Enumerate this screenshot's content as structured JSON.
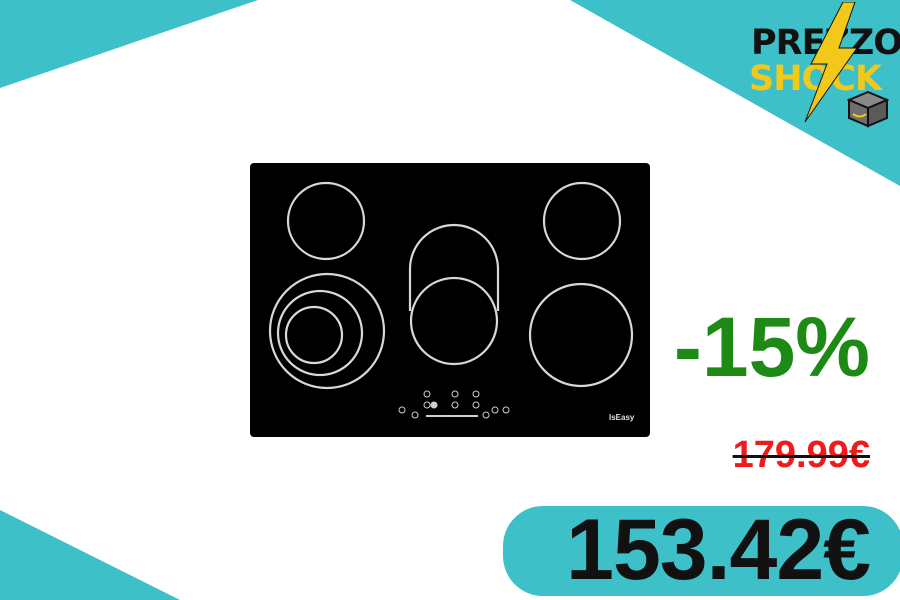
{
  "promo": {
    "logo": {
      "line1": "PREZZO",
      "line2": "SHOCK"
    },
    "discount": "-15%",
    "old_price": "179.99€",
    "new_price": "153.42€"
  },
  "product": {
    "brand": "IsEasy",
    "type": "ceramic hob, 5 zones"
  },
  "colors": {
    "accent": "#3ec0c9",
    "discount": "#1e8a16",
    "old_price": "#ee1b1b",
    "logo_yellow": "#f2c81b",
    "text": "#111111"
  }
}
